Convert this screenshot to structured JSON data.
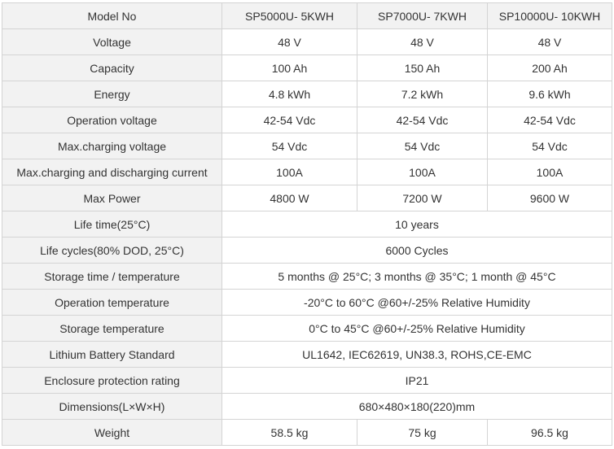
{
  "models": [
    "SP5000U- 5KWH",
    "SP7000U- 7KWH",
    "SP10000U- 10KWH"
  ],
  "header_label": "Model No",
  "rows": [
    {
      "label": "Voltage",
      "values": [
        "48 V",
        "48 V",
        "48 V"
      ]
    },
    {
      "label": "Capacity",
      "values": [
        "100 Ah",
        "150 Ah",
        "200 Ah"
      ]
    },
    {
      "label": "Energy",
      "values": [
        "4.8 kWh",
        "7.2 kWh",
        "9.6 kWh"
      ]
    },
    {
      "label": "Operation voltage",
      "values": [
        "42-54 Vdc",
        "42-54 Vdc",
        "42-54 Vdc"
      ]
    },
    {
      "label": "Max.charging voltage",
      "values": [
        "54 Vdc",
        "54 Vdc",
        "54 Vdc"
      ]
    },
    {
      "label": "Max.charging and discharging current",
      "values": [
        "100A",
        "100A",
        "100A"
      ]
    },
    {
      "label": "Max Power",
      "values": [
        "4800 W",
        "7200 W",
        "9600 W"
      ]
    },
    {
      "label": "Life time(25°C)",
      "values": [
        "10 years"
      ]
    },
    {
      "label": "Life cycles(80% DOD, 25°C)",
      "values": [
        "6000 Cycles"
      ]
    },
    {
      "label": "Storage time / temperature",
      "values": [
        "5 months @ 25°C; 3 months @ 35°C; 1 month @ 45°C"
      ]
    },
    {
      "label": "Operation temperature",
      "values": [
        "-20°C to 60°C @60+/-25% Relative Humidity"
      ]
    },
    {
      "label": "Storage temperature",
      "values": [
        "0°C to 45°C @60+/-25% Relative Humidity"
      ]
    },
    {
      "label": "Lithium Battery Standard",
      "values": [
        "UL1642, IEC62619, UN38.3, ROHS,CE-EMC"
      ]
    },
    {
      "label": "Enclosure protection rating",
      "values": [
        "IP21"
      ]
    },
    {
      "label": "Dimensions(L×W×H)",
      "values": [
        "680×480×180(220)mm"
      ]
    },
    {
      "label": "Weight",
      "values": [
        "58.5 kg",
        "75 kg",
        "96.5 kg"
      ]
    }
  ]
}
